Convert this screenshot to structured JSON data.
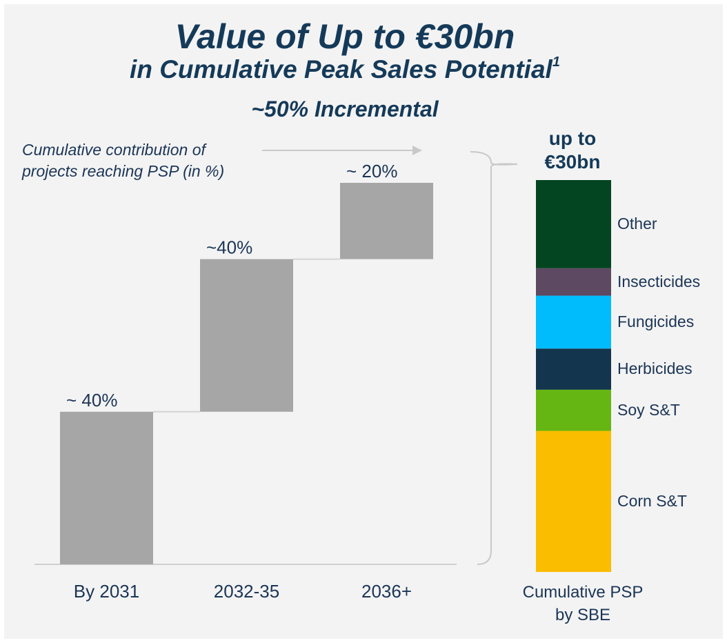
{
  "header": {
    "title": "Value of Up to €30bn",
    "subtitle_text": "in Cumulative Peak Sales Potential",
    "subtitle_footnote": "1",
    "tagline": "~50% Incremental"
  },
  "annotation": {
    "line1": "Cumulative contribution of",
    "line2": "projects reaching PSP (in %)"
  },
  "stack": {
    "title_line1": "up to",
    "title_line2": "€30bn",
    "caption_line1": "Cumulative PSP",
    "caption_line2": "by SBE"
  },
  "colors": {
    "bar": "#a6a6a6",
    "title": "#153a59",
    "text": "#1b3556",
    "connector": "#d4d4d4",
    "axis": "#cfcfcf"
  },
  "chart_data": [
    {
      "type": "bar",
      "subtype": "waterfall",
      "categories": [
        "By 2031",
        "2032-35",
        "2036+"
      ],
      "values": [
        40,
        40,
        20
      ],
      "data_labels": [
        "~ 40%",
        "~40%",
        "~ 20%"
      ],
      "ylim": [
        0,
        100
      ],
      "grid": false
    },
    {
      "type": "bar",
      "subtype": "stacked",
      "categories": [
        "Cumulative PSP by SBE"
      ],
      "series": [
        {
          "name": "Corn S&T",
          "value": 36,
          "color": "#fbbd00"
        },
        {
          "name": "Soy S&T",
          "value": 10.5,
          "color": "#65b612"
        },
        {
          "name": "Herbicides",
          "value": 10.5,
          "color": "#13354e"
        },
        {
          "name": "Fungicides",
          "value": 13.5,
          "color": "#00bcfd"
        },
        {
          "name": "Insecticides",
          "value": 7,
          "color": "#5d4961"
        },
        {
          "name": "Other",
          "value": 22.5,
          "color": "#034421"
        }
      ],
      "total_label": "up to €30bn"
    }
  ]
}
